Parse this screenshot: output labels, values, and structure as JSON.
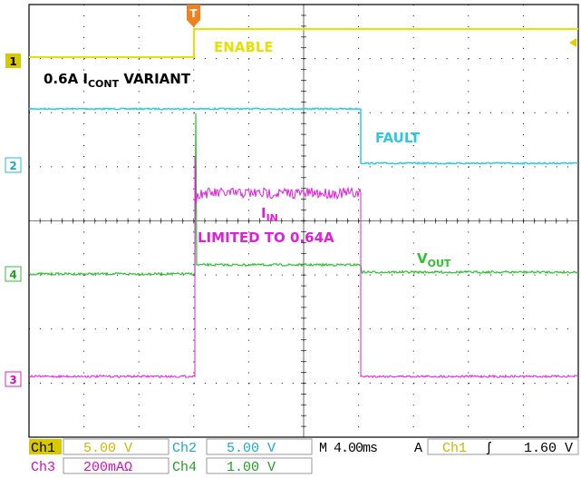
{
  "trigger_marker": "T",
  "channel_markers": [
    "1",
    "2",
    "4",
    "3"
  ],
  "labels": {
    "enable": "ENABLE",
    "variant": {
      "main": "0.6A I",
      "sub": "CONT",
      "rest": " VARIANT"
    },
    "fault": "FAULT",
    "iin": {
      "main": "I",
      "sub": "IN"
    },
    "limited": "LIMITED TO 0.64A",
    "vout": {
      "main": "V",
      "sub": "OUT"
    }
  },
  "status": {
    "row1": {
      "ch1": "Ch1",
      "ch1_scale": "5.00 V",
      "ch2": "Ch2",
      "ch2_scale": "5.00 V",
      "timebase": "M 4.00ms",
      "trigger_mode": "A",
      "trigger_source": "Ch1",
      "trigger_edge": "ʃ",
      "trigger_level": "1.60 V"
    },
    "row2": {
      "ch3": "Ch3",
      "ch3_scale": "200mAΩ",
      "ch4": "Ch4",
      "ch4_scale": "1.00 V"
    }
  }
}
